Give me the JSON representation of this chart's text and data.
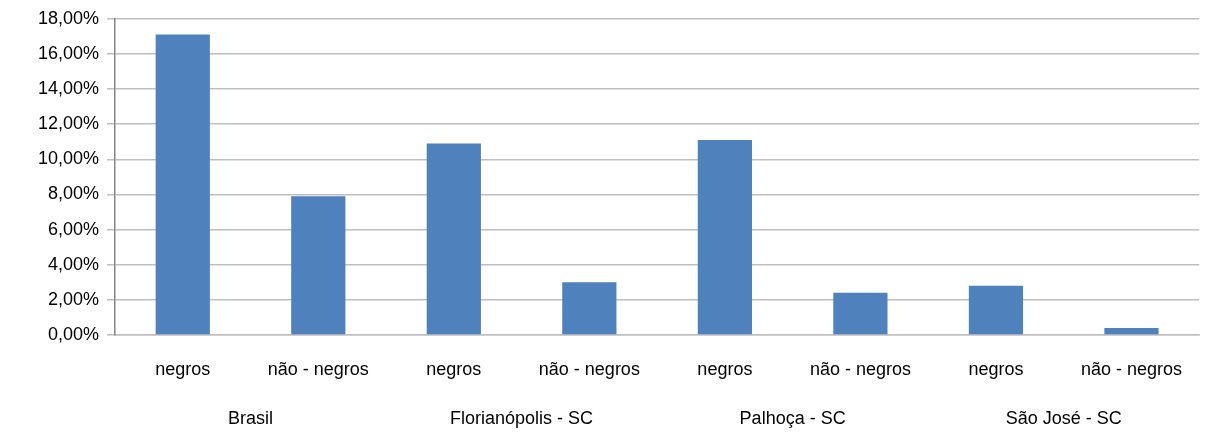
{
  "chart_data": {
    "type": "bar",
    "categories": [
      "negros",
      "não - negros",
      "negros",
      "não - negros",
      "negros",
      "não - negros",
      "negros",
      "não - negros"
    ],
    "values": [
      17.1,
      7.9,
      10.9,
      3.0,
      11.1,
      2.4,
      2.8,
      0.4
    ],
    "color": "#4f81bd",
    "ylim": [
      0,
      18
    ],
    "yticks": [
      {
        "value": 0,
        "label": "0,00%"
      },
      {
        "value": 2,
        "label": "2,00%"
      },
      {
        "value": 4,
        "label": "4,00%"
      },
      {
        "value": 6,
        "label": "6,00%"
      },
      {
        "value": 8,
        "label": "8,00%"
      },
      {
        "value": 10,
        "label": "10,00%"
      },
      {
        "value": 12,
        "label": "12,00%"
      },
      {
        "value": 14,
        "label": "14,00%"
      },
      {
        "value": 16,
        "label": "16,00%"
      },
      {
        "value": 18,
        "label": "18,00%"
      }
    ],
    "grid": "y",
    "legend": false,
    "annotations": [
      "Brasil",
      "Florianópolis - SC",
      "Palhoça - SC",
      "São José - SC"
    ]
  }
}
